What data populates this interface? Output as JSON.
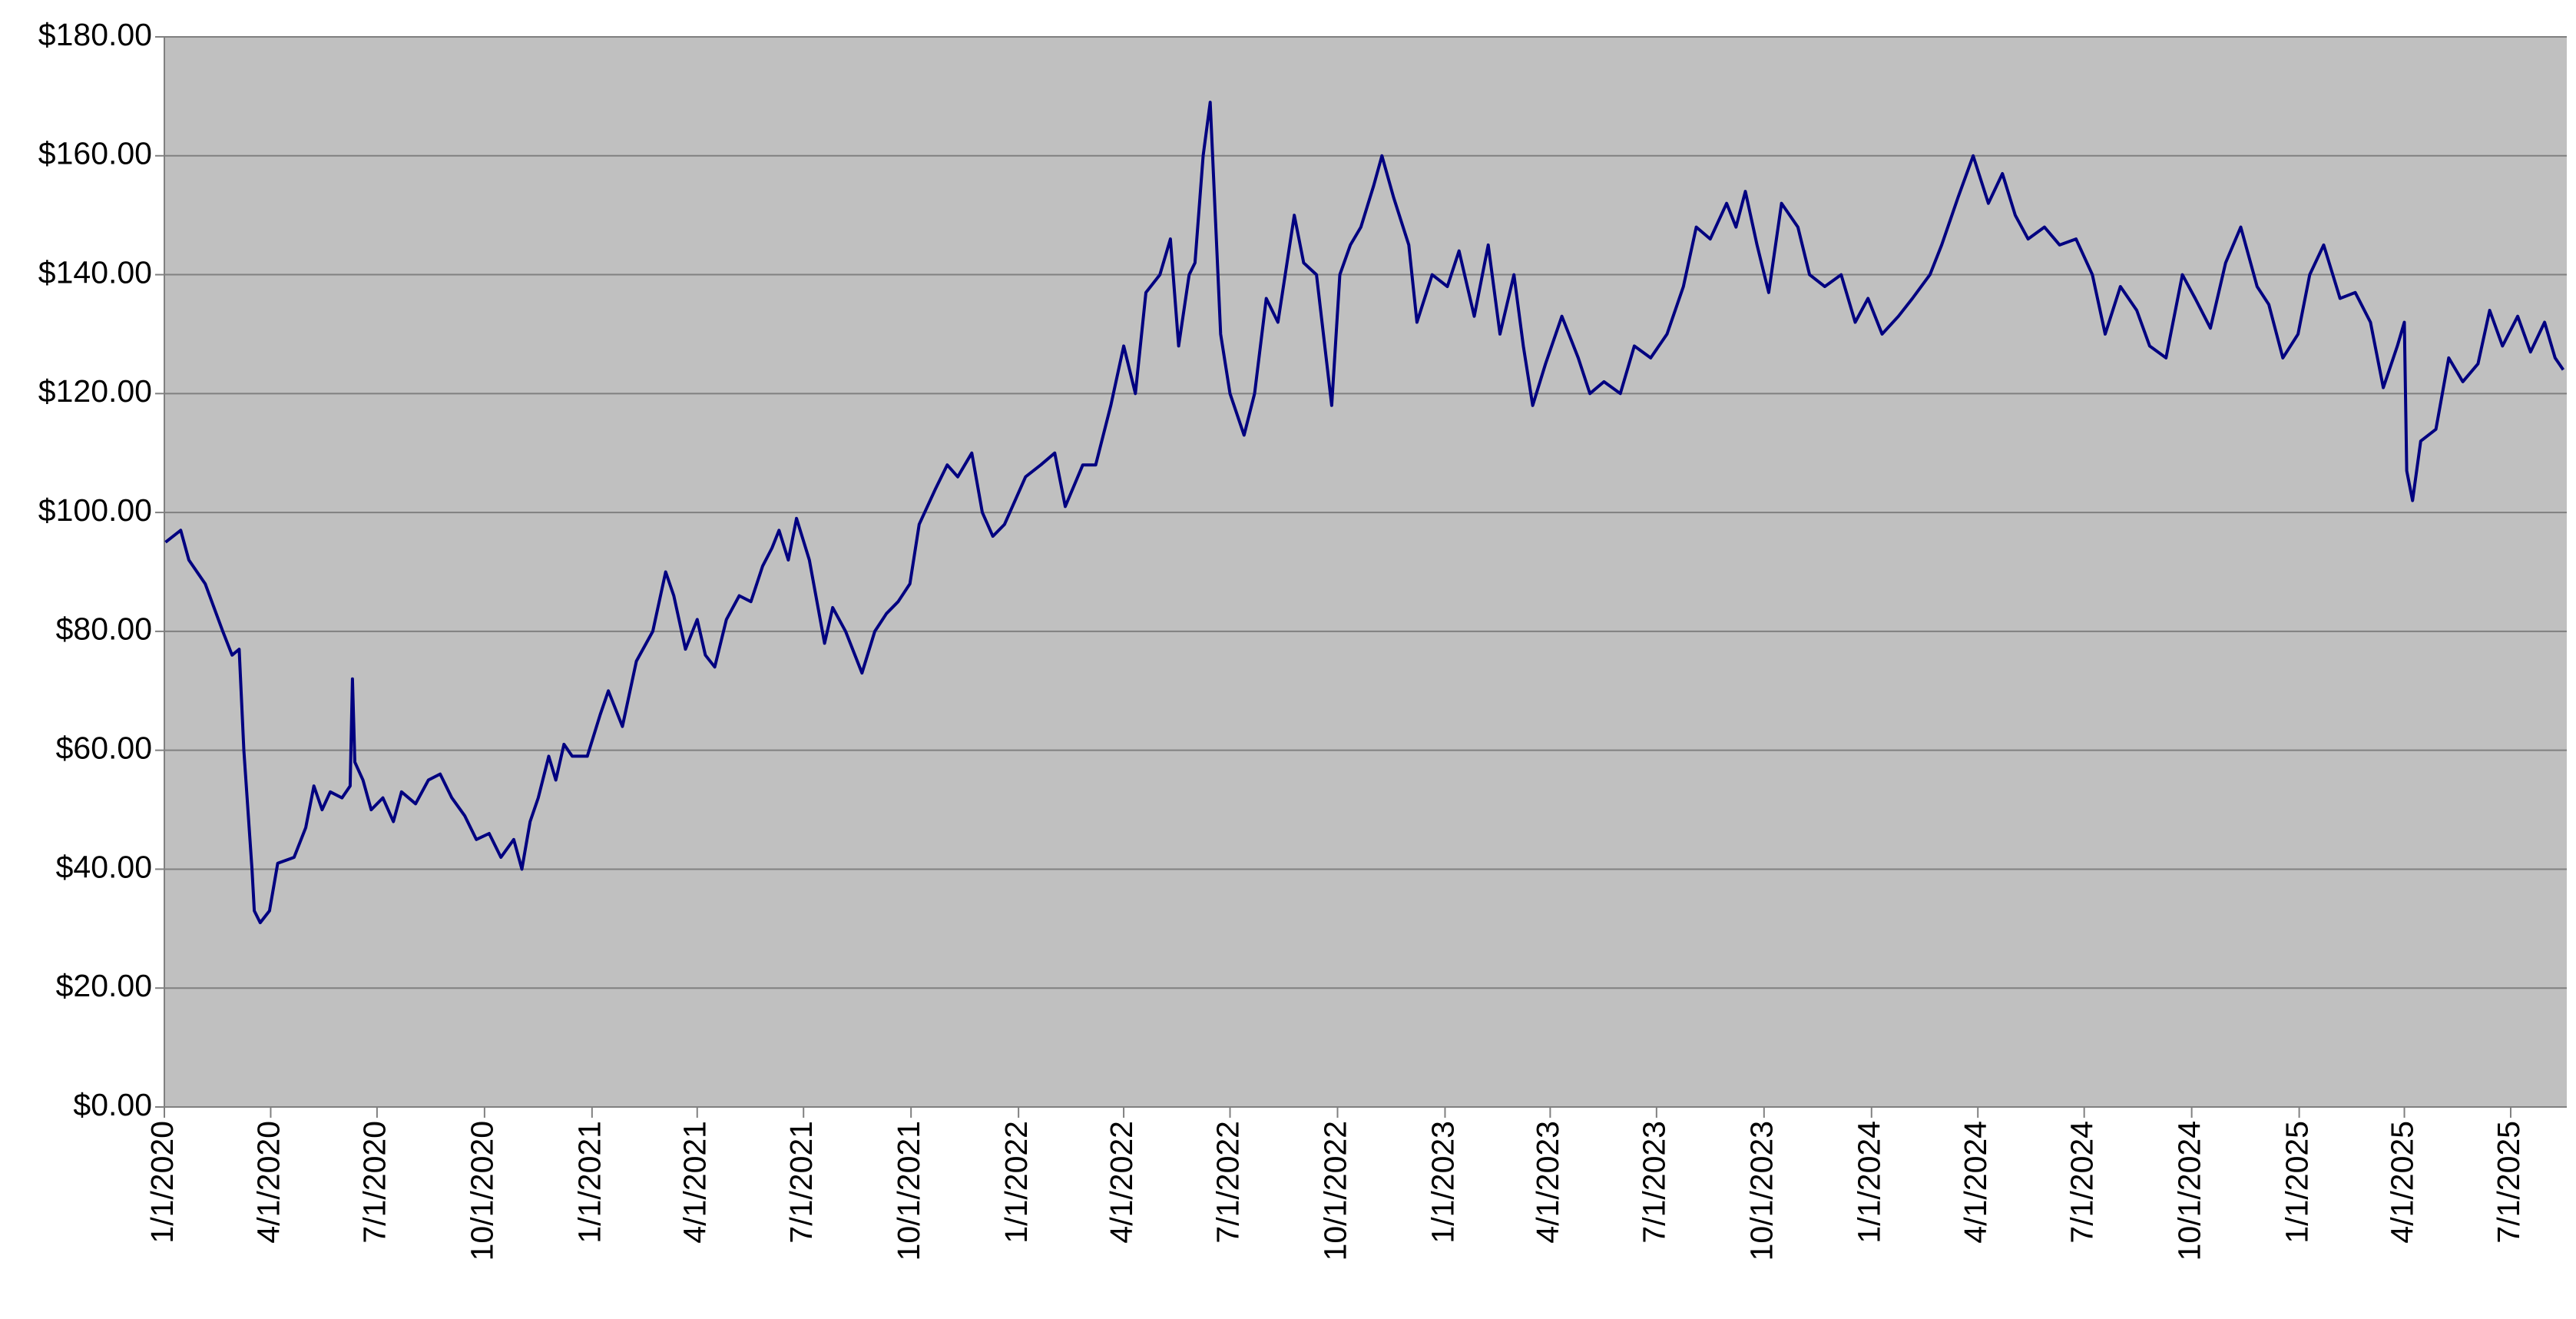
{
  "chart_data": {
    "type": "line",
    "x": [
      "2020-01-02",
      "2020-01-15",
      "2020-01-22",
      "2020-02-05",
      "2020-02-20",
      "2020-02-28",
      "2020-03-05",
      "2020-03-09",
      "2020-03-16",
      "2020-03-18",
      "2020-03-23",
      "2020-03-31",
      "2020-04-07",
      "2020-04-21",
      "2020-05-01",
      "2020-05-08",
      "2020-05-15",
      "2020-05-22",
      "2020-06-01",
      "2020-06-08",
      "2020-06-10",
      "2020-06-12",
      "2020-06-19",
      "2020-06-26",
      "2020-07-06",
      "2020-07-15",
      "2020-07-22",
      "2020-08-03",
      "2020-08-14",
      "2020-08-24",
      "2020-09-03",
      "2020-09-14",
      "2020-09-24",
      "2020-10-05",
      "2020-10-15",
      "2020-10-26",
      "2020-11-02",
      "2020-11-09",
      "2020-11-16",
      "2020-11-25",
      "2020-12-01",
      "2020-12-08",
      "2020-12-15",
      "2020-12-28",
      "2021-01-08",
      "2021-01-15",
      "2021-01-27",
      "2021-02-08",
      "2021-02-22",
      "2021-03-05",
      "2021-03-12",
      "2021-03-22",
      "2021-04-01",
      "2021-04-08",
      "2021-04-16",
      "2021-04-26",
      "2021-05-07",
      "2021-05-17",
      "2021-05-27",
      "2021-06-04",
      "2021-06-10",
      "2021-06-18",
      "2021-06-25",
      "2021-07-06",
      "2021-07-19",
      "2021-07-26",
      "2021-08-06",
      "2021-08-20",
      "2021-08-31",
      "2021-09-10",
      "2021-09-20",
      "2021-09-30",
      "2021-10-08",
      "2021-10-22",
      "2021-11-01",
      "2021-11-10",
      "2021-11-22",
      "2021-12-01",
      "2021-12-10",
      "2021-12-20",
      "2022-01-07",
      "2022-01-20",
      "2022-02-01",
      "2022-02-10",
      "2022-02-25",
      "2022-03-08",
      "2022-03-21",
      "2022-04-01",
      "2022-04-11",
      "2022-04-20",
      "2022-05-02",
      "2022-05-11",
      "2022-05-18",
      "2022-05-27",
      "2022-06-01",
      "2022-06-08",
      "2022-06-14",
      "2022-06-23",
      "2022-07-01",
      "2022-07-13",
      "2022-07-22",
      "2022-08-01",
      "2022-08-11",
      "2022-08-25",
      "2022-09-02",
      "2022-09-13",
      "2022-09-26",
      "2022-10-03",
      "2022-10-12",
      "2022-10-21",
      "2022-11-01",
      "2022-11-08",
      "2022-11-18",
      "2022-12-01",
      "2022-12-08",
      "2022-12-21",
      "2023-01-03",
      "2023-01-13",
      "2023-01-26",
      "2023-02-07",
      "2023-02-17",
      "2023-03-01",
      "2023-03-09",
      "2023-03-17",
      "2023-03-28",
      "2023-04-11",
      "2023-04-25",
      "2023-05-05",
      "2023-05-17",
      "2023-05-31",
      "2023-06-12",
      "2023-06-26",
      "2023-07-10",
      "2023-07-24",
      "2023-08-04",
      "2023-08-16",
      "2023-08-30",
      "2023-09-07",
      "2023-09-15",
      "2023-09-25",
      "2023-10-05",
      "2023-10-16",
      "2023-10-30",
      "2023-11-09",
      "2023-11-22",
      "2023-12-06",
      "2023-12-18",
      "2023-12-29",
      "2024-01-10",
      "2024-01-24",
      "2024-02-05",
      "2024-02-20",
      "2024-03-01",
      "2024-03-15",
      "2024-03-28",
      "2024-04-10",
      "2024-04-22",
      "2024-05-03",
      "2024-05-14",
      "2024-05-28",
      "2024-06-10",
      "2024-06-24",
      "2024-07-08",
      "2024-07-19",
      "2024-08-01",
      "2024-08-15",
      "2024-08-26",
      "2024-09-09",
      "2024-09-23",
      "2024-10-04",
      "2024-10-17",
      "2024-10-30",
      "2024-11-12",
      "2024-11-26",
      "2024-12-06",
      "2024-12-18",
      "2024-12-31",
      "2025-01-10",
      "2025-01-22",
      "2025-02-05",
      "2025-02-18",
      "2025-03-03",
      "2025-03-14",
      "2025-03-26",
      "2025-04-01",
      "2025-04-03",
      "2025-04-08",
      "2025-04-15",
      "2025-04-28",
      "2025-05-09",
      "2025-05-21",
      "2025-06-03",
      "2025-06-13",
      "2025-06-24",
      "2025-07-07",
      "2025-07-18",
      "2025-07-30",
      "2025-08-08",
      "2025-08-15"
    ],
    "series": [
      {
        "color": "#000080",
        "values": [
          95,
          97,
          92,
          88,
          80,
          76,
          77,
          60,
          40,
          33,
          31,
          33,
          41,
          42,
          47,
          54,
          50,
          53,
          52,
          54,
          72,
          58,
          55,
          50,
          52,
          48,
          53,
          51,
          55,
          56,
          52,
          49,
          45,
          46,
          42,
          45,
          40,
          48,
          52,
          59,
          55,
          61,
          59,
          59,
          66,
          70,
          64,
          75,
          80,
          90,
          86,
          77,
          82,
          76,
          74,
          82,
          86,
          85,
          91,
          94,
          97,
          92,
          99,
          92,
          78,
          84,
          80,
          73,
          80,
          83,
          85,
          88,
          98,
          104,
          108,
          106,
          110,
          100,
          96,
          98,
          106,
          108,
          110,
          101,
          108,
          108,
          118,
          128,
          120,
          137,
          140,
          146,
          128,
          140,
          142,
          160,
          169,
          130,
          120,
          113,
          120,
          136,
          132,
          150,
          142,
          140,
          118,
          140,
          145,
          148,
          155,
          160,
          153,
          145,
          132,
          140,
          138,
          144,
          133,
          145,
          130,
          140,
          128,
          118,
          125,
          133,
          126,
          120,
          122,
          120,
          128,
          126,
          130,
          138,
          148,
          146,
          152,
          148,
          154,
          145,
          137,
          152,
          148,
          140,
          138,
          140,
          132,
          136,
          130,
          133,
          136,
          140,
          145,
          153,
          160,
          152,
          157,
          150,
          146,
          148,
          145,
          146,
          140,
          130,
          138,
          134,
          128,
          126,
          140,
          136,
          131,
          142,
          148,
          138,
          135,
          126,
          130,
          140,
          145,
          136,
          137,
          132,
          121,
          128,
          132,
          107,
          102,
          112,
          114,
          126,
          122,
          125,
          134,
          128,
          133,
          127,
          132,
          126,
          124
        ]
      }
    ],
    "xlim": [
      "2020-01-01",
      "2025-08-18"
    ],
    "xticks": [
      {
        "value": "2020-01-01",
        "label": "1/1/2020"
      },
      {
        "value": "2020-04-01",
        "label": "4/1/2020"
      },
      {
        "value": "2020-07-01",
        "label": "7/1/2020"
      },
      {
        "value": "2020-10-01",
        "label": "10/1/2020"
      },
      {
        "value": "2021-01-01",
        "label": "1/1/2021"
      },
      {
        "value": "2021-04-01",
        "label": "4/1/2021"
      },
      {
        "value": "2021-07-01",
        "label": "7/1/2021"
      },
      {
        "value": "2021-10-01",
        "label": "10/1/2021"
      },
      {
        "value": "2022-01-01",
        "label": "1/1/2022"
      },
      {
        "value": "2022-04-01",
        "label": "4/1/2022"
      },
      {
        "value": "2022-07-01",
        "label": "7/1/2022"
      },
      {
        "value": "2022-10-01",
        "label": "10/1/2022"
      },
      {
        "value": "2023-01-01",
        "label": "1/1/2023"
      },
      {
        "value": "2023-04-01",
        "label": "4/1/2023"
      },
      {
        "value": "2023-07-01",
        "label": "7/1/2023"
      },
      {
        "value": "2023-10-01",
        "label": "10/1/2023"
      },
      {
        "value": "2024-01-01",
        "label": "1/1/2024"
      },
      {
        "value": "2024-04-01",
        "label": "4/1/2024"
      },
      {
        "value": "2024-07-01",
        "label": "7/1/2024"
      },
      {
        "value": "2024-10-01",
        "label": "10/1/2024"
      },
      {
        "value": "2025-01-01",
        "label": "1/1/2025"
      },
      {
        "value": "2025-04-01",
        "label": "4/1/2025"
      },
      {
        "value": "2025-07-01",
        "label": "7/1/2025"
      }
    ],
    "ylim": [
      0,
      180
    ],
    "yticks": [
      {
        "value": 0,
        "label": "$0.00"
      },
      {
        "value": 20,
        "label": "$20.00"
      },
      {
        "value": 40,
        "label": "$40.00"
      },
      {
        "value": 60,
        "label": "$60.00"
      },
      {
        "value": 80,
        "label": "$80.00"
      },
      {
        "value": 100,
        "label": "$100.00"
      },
      {
        "value": 120,
        "label": "$120.00"
      },
      {
        "value": 140,
        "label": "$140.00"
      },
      {
        "value": 160,
        "label": "$160.00"
      },
      {
        "value": 180,
        "label": "$180.00"
      }
    ],
    "grid": true
  }
}
